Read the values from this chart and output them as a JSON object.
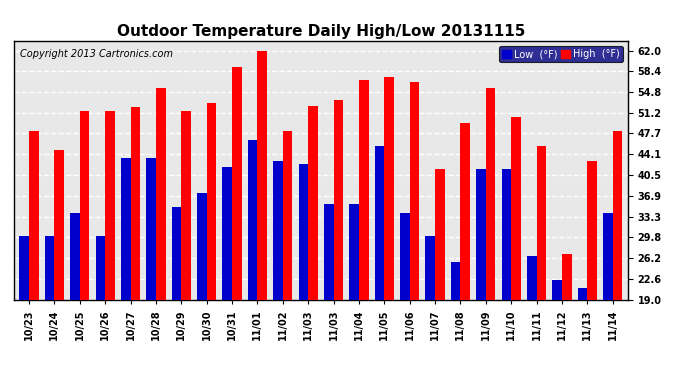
{
  "title": "Outdoor Temperature Daily High/Low 20131115",
  "copyright": "Copyright 2013 Cartronics.com",
  "legend_low": "Low  (°F)",
  "legend_high": "High  (°F)",
  "x_labels": [
    "10/23",
    "10/24",
    "10/25",
    "10/26",
    "10/27",
    "10/28",
    "10/29",
    "10/30",
    "10/31",
    "11/01",
    "11/02",
    "11/03",
    "11/03",
    "11/04",
    "11/05",
    "11/06",
    "11/07",
    "11/08",
    "11/09",
    "11/10",
    "11/11",
    "11/12",
    "11/13",
    "11/14"
  ],
  "high_vals": [
    48.2,
    44.8,
    51.5,
    51.5,
    52.3,
    55.5,
    51.5,
    53.0,
    59.2,
    62.0,
    48.2,
    52.5,
    53.5,
    57.0,
    57.5,
    56.5,
    41.5,
    49.5,
    55.5,
    50.5,
    45.5,
    27.0,
    43.0,
    48.2
  ],
  "low_vals": [
    30.0,
    30.0,
    34.0,
    30.0,
    43.5,
    43.5,
    35.0,
    37.5,
    42.0,
    46.5,
    43.0,
    42.5,
    35.5,
    35.5,
    45.5,
    34.0,
    30.0,
    25.5,
    41.5,
    41.5,
    26.5,
    22.5,
    21.0,
    34.0
  ],
  "bar_color_high": "#ff0000",
  "bar_color_low": "#0000cc",
  "background_color": "#ffffff",
  "plot_bg_color": "#ffffff",
  "grid_color": "#888888",
  "ylim_min": 19.0,
  "ylim_max": 63.6,
  "yticks": [
    19.0,
    22.6,
    26.2,
    29.8,
    33.3,
    36.9,
    40.5,
    44.1,
    47.7,
    51.2,
    54.8,
    58.4,
    62.0
  ],
  "bar_width": 0.38,
  "title_fontsize": 11,
  "tick_fontsize": 7,
  "copyright_fontsize": 7
}
